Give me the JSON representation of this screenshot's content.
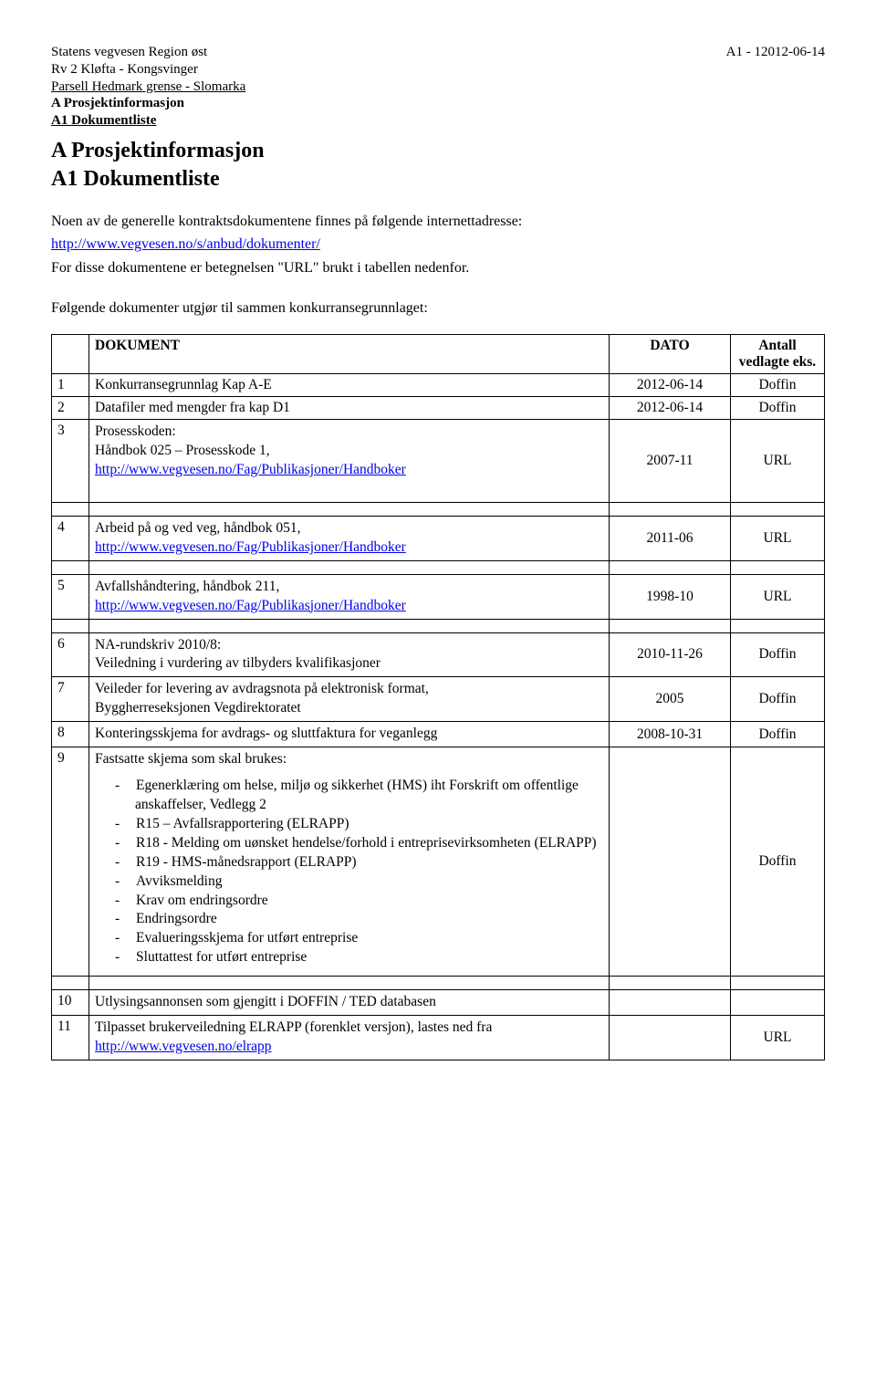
{
  "header": {
    "org": "Statens vegvesen Region øst",
    "road": "Rv 2 Kløfta - Kongsvinger",
    "parsell": "Parsell Hedmark grense - Slomarka",
    "project_line": "A Prosjektinformasjon",
    "doc_line": "A1 Dokumentliste",
    "page_ref": "A1 - 1",
    "date": "2012-06-14"
  },
  "title_a": "A Prosjektinformasjon",
  "title_a1": "A1  Dokumentliste",
  "intro1": "Noen av de generelle kontraktsdokumentene finnes på følgende internettadresse:",
  "intro_link": "http://www.vegvesen.no/s/anbud/dokumenter/",
  "intro2": "For disse dokumentene er betegnelsen \"URL\" brukt i tabellen nedenfor.",
  "intro3": "Følgende dokumenter utgjør til sammen konkurransegrunnlaget:",
  "table": {
    "head": {
      "col1": "DOKUMENT",
      "col2": "DATO",
      "col3": "Antall vedlagte eks."
    },
    "rows": [
      {
        "n": "1",
        "desc": "Konkurransegrunnlag Kap A-E",
        "date": "2012-06-14",
        "eks": "Doffin"
      },
      {
        "n": "2",
        "desc": "Datafiler med mengder fra kap D1",
        "date": "2012-06-14",
        "eks": "Doffin"
      },
      {
        "n": "3",
        "desc_pre": "Prosesskoden:",
        "desc_mid": "Håndbok 025 – Prosesskode 1,",
        "link": "http://www.vegvesen.no/Fag/Publikasjoner/Handboker",
        "date": "2007-11",
        "eks": "URL"
      },
      {
        "n": "4",
        "desc_pre": "Arbeid på og ved veg, håndbok 051,",
        "link": "http://www.vegvesen.no/Fag/Publikasjoner/Handboker",
        "date": "2011-06",
        "eks": "URL"
      },
      {
        "n": "5",
        "desc_pre": "Avfallshåndtering, håndbok 211,",
        "link": "http://www.vegvesen.no/Fag/Publikasjoner/Handboker",
        "date": "1998-10",
        "eks": "URL"
      },
      {
        "n": "6",
        "desc_pre": "NA-rundskriv 2010/8:",
        "desc_mid": "Veiledning i vurdering av tilbyders kvalifikasjoner",
        "date": "2010-11-26",
        "eks": "Doffin"
      },
      {
        "n": "7",
        "desc_pre": "Veileder for levering av avdragsnota på elektronisk format,",
        "desc_mid": "Byggherreseksjonen Vegdirektoratet",
        "date": "2005",
        "eks": "Doffin"
      },
      {
        "n": "8",
        "desc_pre": "Konteringsskjema for avdrags- og sluttfaktura for veganlegg",
        "date": "2008-10-31",
        "eks": "Doffin"
      },
      {
        "n": "9",
        "desc_pre": "Fastsatte skjema som skal brukes:",
        "list": [
          "Egenerklæring om helse, miljø og sikkerhet (HMS) iht Forskrift om offentlige anskaffelser, Vedlegg 2",
          "R15 – Avfallsrapportering (ELRAPP)",
          "R18 - Melding om uønsket hendelse/forhold i entreprisevirksomheten (ELRAPP)",
          "R19 - HMS-månedsrapport (ELRAPP)",
          "Avviksmelding",
          "Krav om endringsordre",
          "Endringsordre",
          "Evalueringsskjema for utført entreprise",
          "Sluttattest for utført entreprise"
        ],
        "date": "",
        "eks": "Doffin"
      },
      {
        "n": "10",
        "desc_pre": "Utlysingsannonsen som gjengitt i DOFFIN / TED databasen",
        "date": "",
        "eks": ""
      },
      {
        "n": "11",
        "desc_pre": "Tilpasset brukerveiledning ELRAPP (forenklet versjon), lastes ned fra ",
        "link": "http://www.vegvesen.no/elrapp",
        "inline_link": true,
        "date": "",
        "eks": "URL"
      }
    ]
  }
}
